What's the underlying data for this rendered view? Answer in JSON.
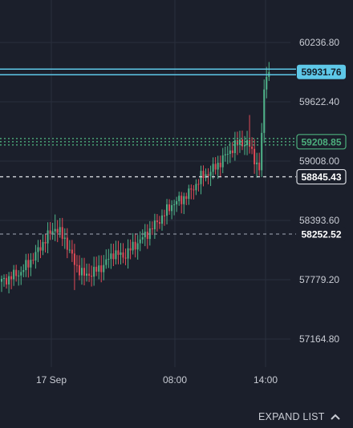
{
  "chart_data": {
    "type": "candlestick",
    "x_ticks": [
      "17 Sep",
      "08:00",
      "14:00"
    ],
    "y_ticks": [
      60236.8,
      59622.4,
      59008.0,
      58393.6,
      57779.2,
      57164.8
    ],
    "y_range": [
      56850,
      60600
    ],
    "price_lines": [
      {
        "value": 59931.76,
        "label": "59931.76",
        "style": "solid",
        "color": "#5ec8e8"
      },
      {
        "value": 59208.85,
        "label": "59208.85",
        "style": "dotted",
        "color": "#4caf7d"
      },
      {
        "value": 58845.43,
        "label": "58845.43",
        "style": "dashed",
        "color": "#d8dae0"
      },
      {
        "value": 58252.52,
        "label": "58252.52",
        "style": "dashed",
        "color": "#8a8f9c"
      }
    ],
    "colors": {
      "up": "#4fb48a",
      "down": "#e04b57"
    }
  },
  "footer": {
    "expand_label": "EXPAND LIST"
  }
}
